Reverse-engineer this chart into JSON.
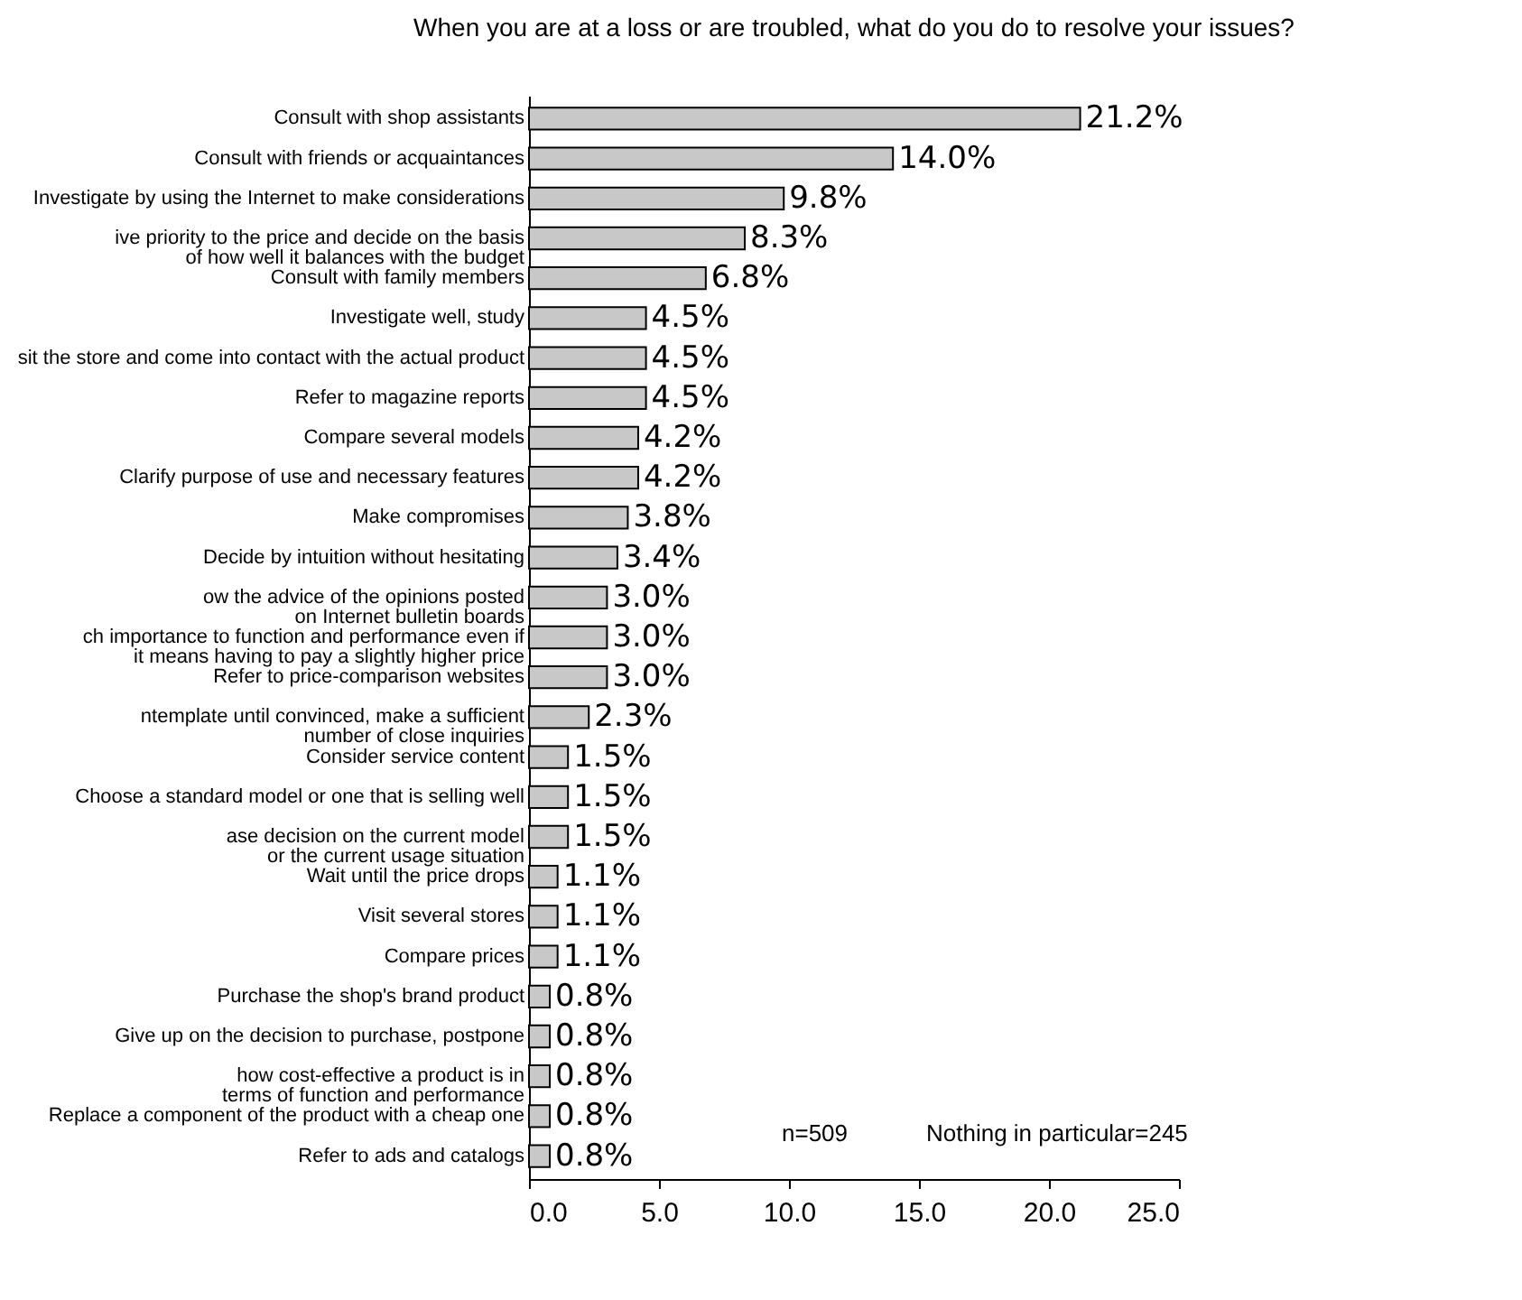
{
  "chart_data": {
    "type": "bar",
    "orientation": "horizontal",
    "title": "When you are at a loss or are troubled, what do you do to resolve your issues?",
    "categories": [
      "Consult with shop assistants",
      "Consult with friends or acquaintances",
      "Investigate by using the Internet to make considerations",
      "ive priority to the price and decide on the basis of how well it balances with the budget",
      "Consult with family members",
      "Investigate well, study",
      "sit the store and come into contact with the actual product",
      "Refer to magazine reports",
      "Compare several models",
      "Clarify purpose of use and necessary features",
      "Make compromises",
      "Decide by intuition without hesitating",
      "ow the advice of the opinions posted on Internet bulletin boards",
      "ch importance to function and performance even if it means having to pay a slightly higher price",
      "Refer to price-comparison websites",
      "ntemplate until convinced, make a sufficient number of close inquiries",
      "Consider service content",
      "Choose a standard model or one that is selling well",
      "ase decision on the current model or the current usage situation",
      "Wait until the price drops",
      "Visit several stores",
      "Compare prices",
      "Purchase the shop's brand product",
      "Give up on the decision to purchase, postpone",
      "how cost-effective a product is in terms of function and performance",
      "Replace a component of the product with a cheap one",
      "Refer to ads and catalogs"
    ],
    "series": [
      {
        "color": "#c8c8c8",
        "values": [
          21.2,
          14.0,
          9.8,
          8.3,
          6.8,
          4.5,
          4.5,
          4.5,
          4.2,
          4.2,
          3.8,
          3.4,
          3.0,
          3.0,
          3.0,
          2.3,
          1.5,
          1.5,
          1.5,
          1.1,
          1.1,
          1.1,
          0.8,
          0.8,
          0.8,
          0.8,
          0.8
        ],
        "value_labels": [
          "21.2%",
          "14.0%",
          "9.8%",
          "8.3%",
          "6.8%",
          "4.5%",
          "4.5%",
          "4.5%",
          "4.2%",
          "4.2%",
          "3.8%",
          "3.4%",
          "3.0%",
          "3.0%",
          "3.0%",
          "2.3%",
          "1.5%",
          "1.5%",
          "1.5%",
          "1.1%",
          "1.1%",
          "1.1%",
          "0.8%",
          "0.8%",
          "0.8%",
          "0.8%",
          "0.8%"
        ]
      }
    ],
    "xlim": [
      0,
      25
    ],
    "xticks": [
      {
        "value": 0,
        "label": "0.0"
      },
      {
        "value": 5,
        "label": "5.0"
      },
      {
        "value": 10,
        "label": "10.0"
      },
      {
        "value": 15,
        "label": "15.0"
      },
      {
        "value": 20,
        "label": "20.0"
      },
      {
        "value": 25,
        "label": "25.0"
      }
    ],
    "grid": false,
    "legend": false,
    "annotations": [
      "n=509",
      "Nothing in particular=245"
    ]
  }
}
